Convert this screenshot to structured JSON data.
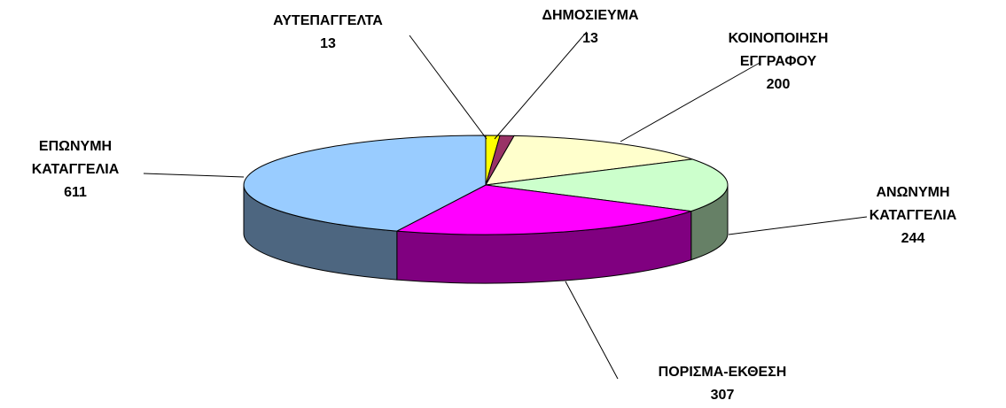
{
  "chart_data": {
    "type": "pie3d",
    "categories": [
      "ΑΥΤΕΠΑΓΓΕΛΤΑ",
      "ΔΗΜΟΣΙΕΥΜΑ",
      "ΚΟΙΝΟΠΟΙΗΣΗ ΕΓΓΡΑΦΟΥ",
      "ΑΝΩΝΥΜΗ ΚΑΤΑΓΓΕΛΙΑ",
      "ΠΟΡΙΣΜΑ-ΕΚΘΕΣΗ",
      "ΕΠΩΝΥΜΗ ΚΑΤΑΓΓΕΛΙΑ"
    ],
    "values": [
      13,
      13,
      200,
      244,
      307,
      611
    ],
    "colors": [
      "#ffff00",
      "#993366",
      "#ffffcc",
      "#ccffcc",
      "#ff00ff",
      "#99ccff"
    ]
  }
}
